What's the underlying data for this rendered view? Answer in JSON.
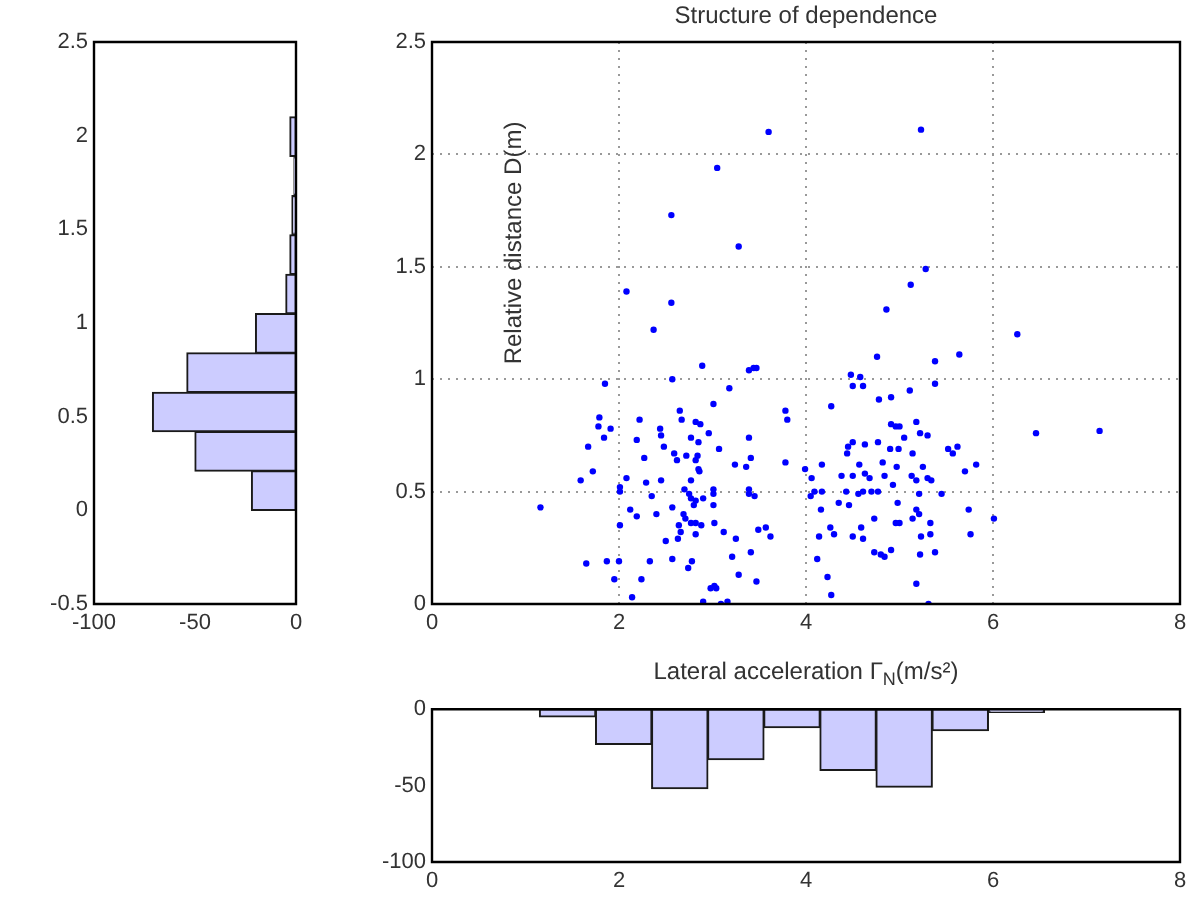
{
  "chart_data": [
    {
      "type": "histogram",
      "orientation": "horizontal",
      "bins": [
        0,
        0.21,
        0.42,
        0.63,
        0.84,
        1.05,
        1.26,
        1.47,
        1.68,
        1.89,
        2.1
      ],
      "values": [
        -22,
        -50,
        -71,
        -54,
        -20,
        -5,
        -3,
        -2,
        -1,
        -3
      ],
      "color": "#ccccff",
      "xlim": [
        -100,
        0
      ],
      "xticks": [
        -100,
        -50,
        0
      ],
      "ylim": [
        -0.5,
        2.5
      ],
      "yticks": [
        -0.5,
        0,
        0.5,
        1,
        1.5,
        2,
        2.5
      ],
      "grid": false
    },
    {
      "type": "scatter",
      "title": "Structure of dependence",
      "xlabel": "Lateral acceleration Γ$_{N}$(m/s²)",
      "ylabel": "Relative distance D(m)",
      "color": "#0000ff",
      "marker": "circle",
      "grid": true,
      "x": [
        3.6,
        3.05,
        2.56,
        3.28,
        2.08,
        2.56,
        2.37,
        2.89,
        3.39,
        3.44,
        3.47,
        2.57,
        1.85,
        3.18,
        3.01,
        2.65,
        2.67,
        3.78,
        3.8,
        1.79,
        2.22,
        2.82,
        2.87,
        1.78,
        1.91,
        2.44,
        2.45,
        2.96,
        3.39,
        1.84,
        1.67,
        2.19,
        2.77,
        2.85,
        2.48,
        3.07,
        2.59,
        2.62,
        2.27,
        2.72,
        2.84,
        2.82,
        3.41,
        3.78,
        3.24,
        3.36,
        1.72,
        2.85,
        2.86,
        1.59,
        2.08,
        2.77,
        2.45,
        2.01,
        2.01,
        2.29,
        2.7,
        2.75,
        3.01,
        3.01,
        3.39,
        3.39,
        3.45,
        2.77,
        2.82,
        2.8,
        2.9,
        2.35,
        1.16,
        2.57,
        3.01,
        2.12,
        2.19,
        2.4,
        2.69,
        2.71,
        2.82,
        2.77,
        2.64,
        2.66,
        2.88,
        3.02,
        2.01,
        3.12,
        3.49,
        3.57,
        3.62,
        3.25,
        2.63,
        2.5,
        2.82,
        2.33,
        2.57,
        2.78,
        3.21,
        3.41,
        2.74,
        1.65,
        1.87,
        2.0,
        3.28,
        2.24,
        1.95,
        3.47,
        3.02,
        2.98,
        3.04,
        2.14,
        2.9,
        3.09,
        3.16,
        5.23,
        5.28,
        5.12,
        4.86,
        6.26,
        5.64,
        5.38,
        4.76,
        4.48,
        4.5,
        4.58,
        4.61,
        5.38,
        5.11,
        4.78,
        4.91,
        4.27,
        4.91,
        4.96,
        5.0,
        5.18,
        6.46,
        7.14,
        5.22,
        5.3,
        4.5,
        4.45,
        4.44,
        4.63,
        4.77,
        5.05,
        4.9,
        4.99,
        5.52,
        5.57,
        5.62,
        5.14,
        3.99,
        4.06,
        4.17,
        4.38,
        4.5,
        4.63,
        4.68,
        4.82,
        4.97,
        4.84,
        4.57,
        5.13,
        5.18,
        5.3,
        5.34,
        5.25,
        5.82,
        5.7,
        4.09,
        4.17,
        4.05,
        4.43,
        4.56,
        4.61,
        4.7,
        4.77,
        4.93,
        4.98,
        5.21,
        5.45,
        4.35,
        4.46,
        5.18,
        5.21,
        5.14,
        5.74,
        6.01,
        4.16,
        4.73,
        4.96,
        5.0,
        4.26,
        4.3,
        4.59,
        5.33,
        5.76,
        5.23,
        5.33,
        4.5,
        4.61,
        4.14,
        4.73,
        4.8,
        4.84,
        4.91,
        5.38,
        5.22,
        4.12,
        4.23,
        4.27,
        5.18,
        5.31
      ],
      "values": [
        2.1,
        1.94,
        1.73,
        1.59,
        1.39,
        1.34,
        1.22,
        1.06,
        1.04,
        1.05,
        1.05,
        1.0,
        0.98,
        0.96,
        0.89,
        0.86,
        0.82,
        0.86,
        0.82,
        0.83,
        0.82,
        0.81,
        0.8,
        0.79,
        0.78,
        0.78,
        0.75,
        0.76,
        0.74,
        0.74,
        0.7,
        0.73,
        0.74,
        0.72,
        0.7,
        0.69,
        0.67,
        0.64,
        0.65,
        0.66,
        0.66,
        0.64,
        0.65,
        0.63,
        0.62,
        0.61,
        0.59,
        0.6,
        0.59,
        0.55,
        0.56,
        0.55,
        0.55,
        0.52,
        0.5,
        0.54,
        0.51,
        0.49,
        0.51,
        0.49,
        0.51,
        0.49,
        0.48,
        0.47,
        0.46,
        0.44,
        0.47,
        0.48,
        0.43,
        0.43,
        0.44,
        0.42,
        0.39,
        0.4,
        0.4,
        0.38,
        0.36,
        0.36,
        0.35,
        0.32,
        0.35,
        0.36,
        0.35,
        0.32,
        0.33,
        0.34,
        0.3,
        0.29,
        0.29,
        0.28,
        0.31,
        0.19,
        0.2,
        0.19,
        0.21,
        0.23,
        0.16,
        0.18,
        0.19,
        0.19,
        0.13,
        0.11,
        0.11,
        0.1,
        0.08,
        0.07,
        0.07,
        0.03,
        0.01,
        0.0,
        0.01,
        2.11,
        1.49,
        1.42,
        1.31,
        1.2,
        1.11,
        1.08,
        1.1,
        1.02,
        0.97,
        1.01,
        0.97,
        0.98,
        0.95,
        0.91,
        0.92,
        0.88,
        0.8,
        0.79,
        0.79,
        0.81,
        0.76,
        0.77,
        0.76,
        0.75,
        0.72,
        0.7,
        0.67,
        0.71,
        0.72,
        0.74,
        0.69,
        0.69,
        0.69,
        0.67,
        0.7,
        0.67,
        0.6,
        0.56,
        0.62,
        0.57,
        0.57,
        0.58,
        0.56,
        0.63,
        0.61,
        0.57,
        0.62,
        0.57,
        0.55,
        0.56,
        0.55,
        0.61,
        0.62,
        0.59,
        0.5,
        0.5,
        0.48,
        0.5,
        0.49,
        0.5,
        0.5,
        0.5,
        0.53,
        0.45,
        0.49,
        0.49,
        0.45,
        0.44,
        0.42,
        0.4,
        0.38,
        0.42,
        0.38,
        0.42,
        0.38,
        0.36,
        0.36,
        0.34,
        0.31,
        0.34,
        0.36,
        0.31,
        0.3,
        0.31,
        0.3,
        0.29,
        0.3,
        0.23,
        0.22,
        0.21,
        0.24,
        0.23,
        0.22,
        0.2,
        0.12,
        0.04,
        0.09,
        0.0
      ],
      "xlim": [
        0,
        8
      ],
      "xticks": [
        0,
        2,
        4,
        6,
        8
      ],
      "ylim": [
        0,
        2.5
      ],
      "yticks": [
        0,
        0.5,
        1,
        1.5,
        2,
        2.5
      ]
    },
    {
      "type": "histogram",
      "bins": [
        1.15,
        1.75,
        2.35,
        2.95,
        3.55,
        4.15,
        4.75,
        5.35,
        5.95,
        6.55
      ],
      "values": [
        -5,
        -23,
        -52,
        -33,
        -12,
        -40,
        -51,
        -14,
        -2
      ],
      "color": "#ccccff",
      "xlim": [
        0,
        8
      ],
      "xticks": [
        0,
        2,
        4,
        6,
        8
      ],
      "ylim": [
        -100,
        0
      ],
      "yticks": [
        -100,
        -50,
        0
      ],
      "grid": false
    }
  ]
}
